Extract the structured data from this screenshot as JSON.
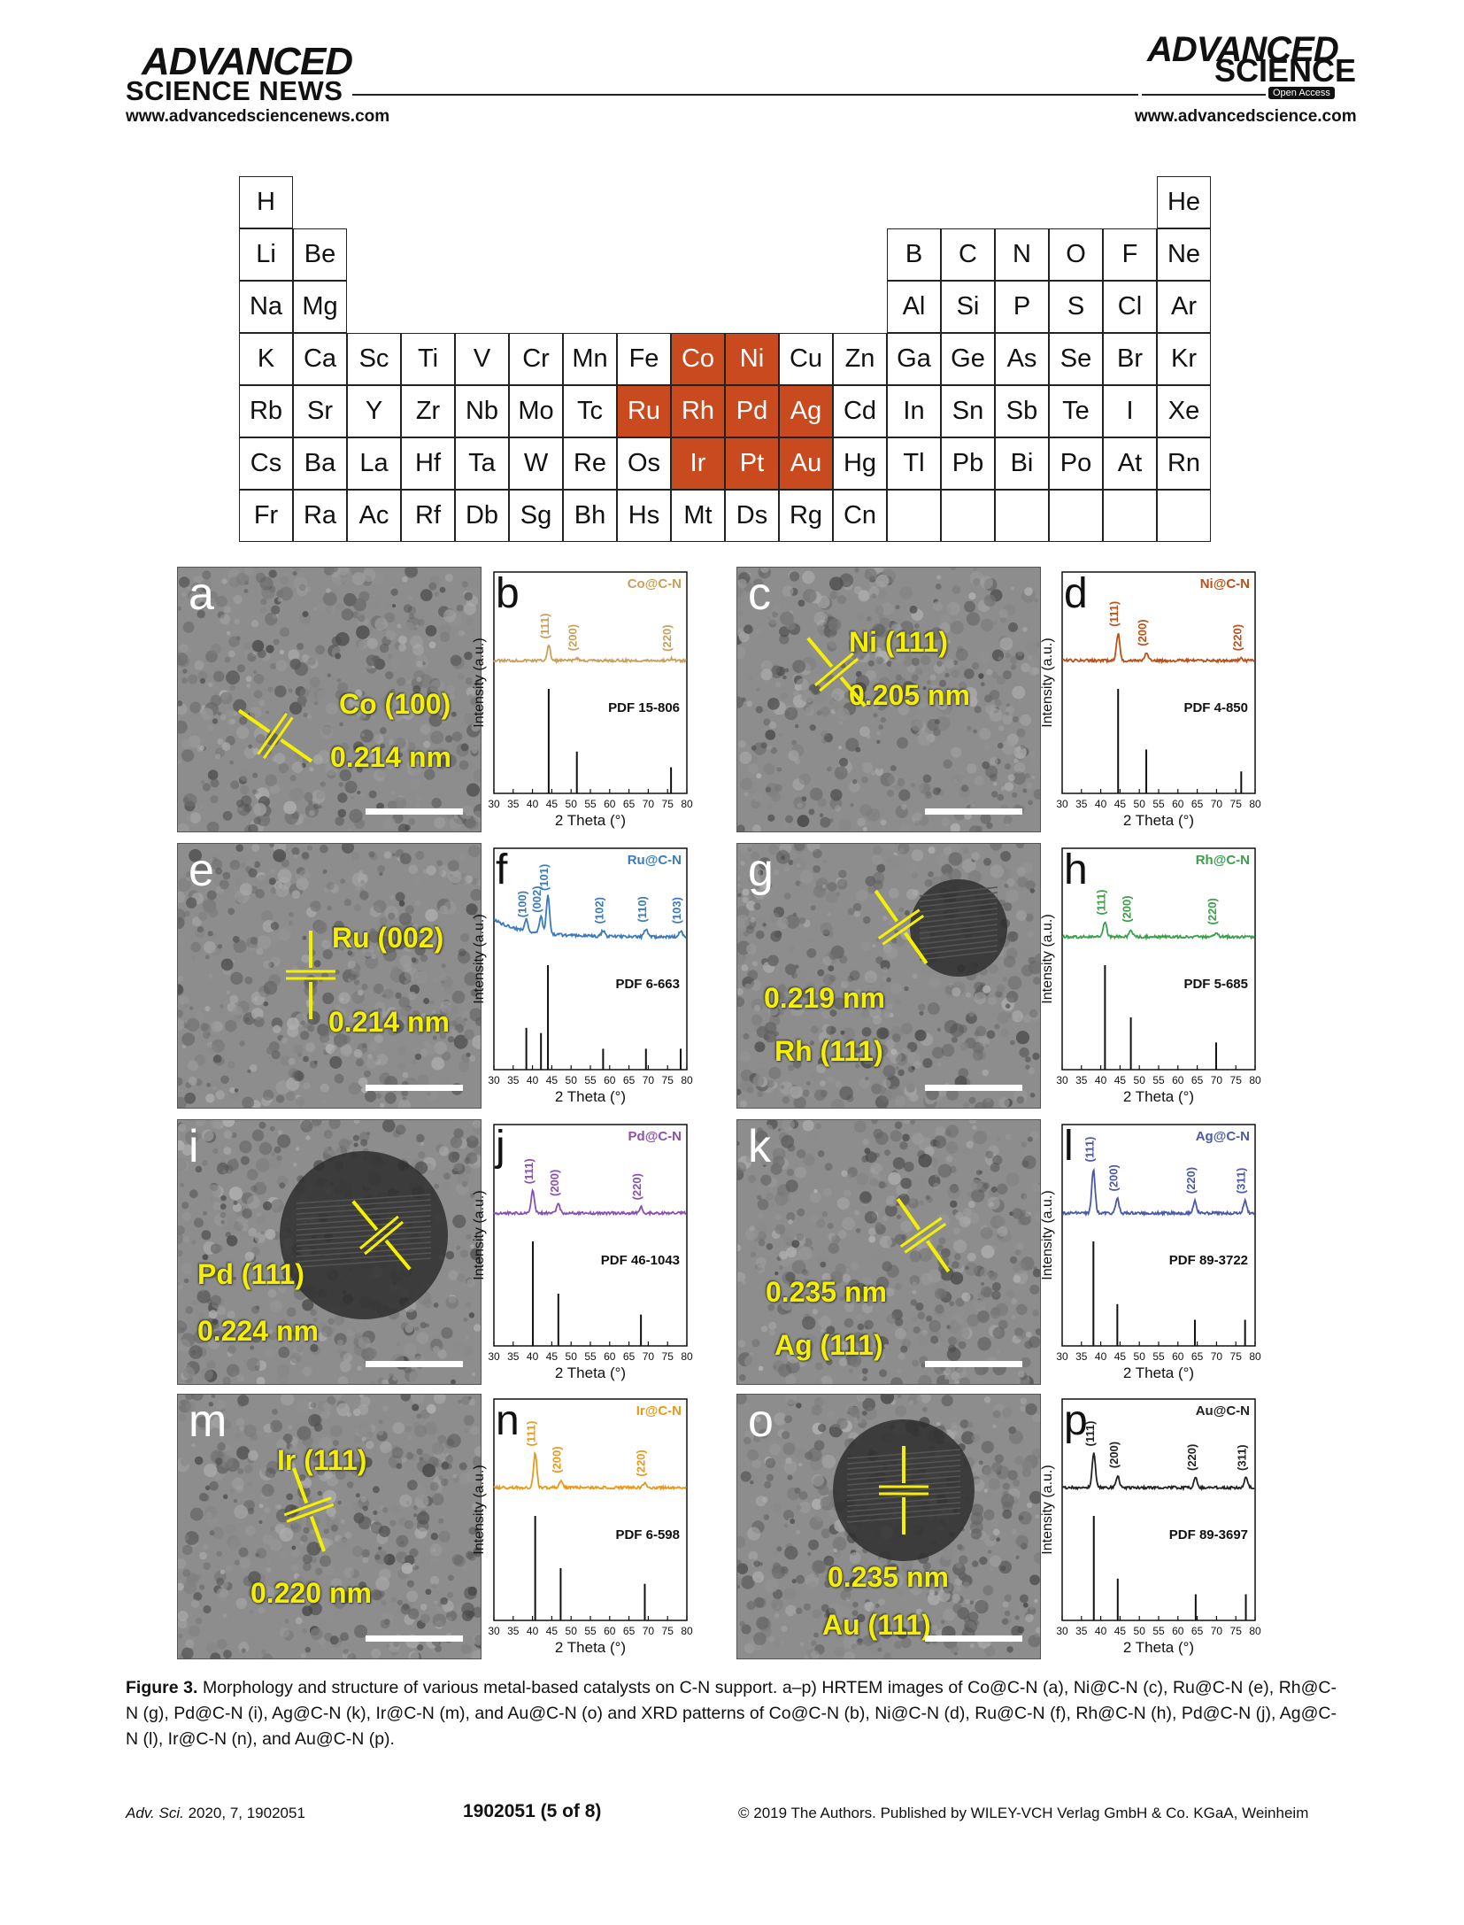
{
  "header": {
    "left_logo_line1": "ADVANCED",
    "left_logo_line2": "SCIENCE NEWS",
    "left_url": "www.advancedsciencenews.com",
    "right_logo_line1": "ADVANCED",
    "right_logo_line2": "SCIENCE",
    "right_badge": "Open Access",
    "right_url": "www.advancedscience.com"
  },
  "periodic_table": {
    "highlight_color": "#c94a1f",
    "highlighted": [
      "Co",
      "Ni",
      "Ru",
      "Rh",
      "Pd",
      "Ag",
      "Ir",
      "Pt",
      "Au"
    ],
    "rows": [
      [
        "H",
        null,
        null,
        null,
        null,
        null,
        null,
        null,
        null,
        null,
        null,
        null,
        null,
        null,
        null,
        null,
        null,
        "He"
      ],
      [
        "Li",
        "Be",
        null,
        null,
        null,
        null,
        null,
        null,
        null,
        null,
        null,
        null,
        "B",
        "C",
        "N",
        "O",
        "F",
        "Ne"
      ],
      [
        "Na",
        "Mg",
        null,
        null,
        null,
        null,
        null,
        null,
        null,
        null,
        null,
        null,
        "Al",
        "Si",
        "P",
        "S",
        "Cl",
        "Ar"
      ],
      [
        "K",
        "Ca",
        "Sc",
        "Ti",
        "V",
        "Cr",
        "Mn",
        "Fe",
        "Co",
        "Ni",
        "Cu",
        "Zn",
        "Ga",
        "Ge",
        "As",
        "Se",
        "Br",
        "Kr"
      ],
      [
        "Rb",
        "Sr",
        "Y",
        "Zr",
        "Nb",
        "Mo",
        "Tc",
        "Ru",
        "Rh",
        "Pd",
        "Ag",
        "Cd",
        "In",
        "Sn",
        "Sb",
        "Te",
        "I",
        "Xe"
      ],
      [
        "Cs",
        "Ba",
        "La",
        "Hf",
        "Ta",
        "W",
        "Re",
        "Os",
        "Ir",
        "Pt",
        "Au",
        "Hg",
        "Tl",
        "Pb",
        "Bi",
        "Po",
        "At",
        "Rn"
      ],
      [
        "Fr",
        "Ra",
        "Ac",
        "Rf",
        "Db",
        "Sg",
        "Bh",
        "Hs",
        "Mt",
        "Ds",
        "Rg",
        "Cn",
        "",
        "",
        "",
        "",
        "",
        ""
      ]
    ]
  },
  "hrtem_panels": [
    {
      "letter": "a",
      "labels": [
        "Co (100)",
        "0.214 nm"
      ]
    },
    {
      "letter": "c",
      "labels": [
        "Ni (111)",
        "0.205 nm"
      ]
    },
    {
      "letter": "e",
      "labels": [
        "Ru (002)",
        "0.214 nm"
      ]
    },
    {
      "letter": "g",
      "labels": [
        "0.219 nm",
        "Rh (111)"
      ]
    },
    {
      "letter": "i",
      "labels": [
        "Pd (111)",
        "0.224 nm"
      ]
    },
    {
      "letter": "k",
      "labels": [
        "0.235 nm",
        "Ag (111)"
      ]
    },
    {
      "letter": "m",
      "labels": [
        "Ir (111)",
        "0.220 nm"
      ]
    },
    {
      "letter": "o",
      "labels": [
        "0.235 nm",
        "Au (111)"
      ]
    }
  ],
  "chart_data": [
    {
      "type": "line",
      "panel": "b",
      "sample": "Co@C-N",
      "color": "#c9a05a",
      "reference": "PDF 15-806",
      "xlabel": "2 Theta (°)",
      "ylabel": "Intensity (a.u.)",
      "xlim": [
        30,
        80
      ],
      "x_ticks": [
        30,
        35,
        40,
        45,
        50,
        55,
        60,
        65,
        70,
        75,
        80
      ],
      "peaks": [
        {
          "x": 44.2,
          "label": "(111)",
          "h": 0.3
        },
        {
          "x": 51.5,
          "label": "(200)",
          "h": 0.05
        },
        {
          "x": 75.9,
          "label": "(220)",
          "h": 0.04
        }
      ],
      "pdf_sticks": [
        {
          "x": 44.2,
          "h": 1.0
        },
        {
          "x": 51.5,
          "h": 0.4
        },
        {
          "x": 75.9,
          "h": 0.25
        }
      ]
    },
    {
      "type": "line",
      "panel": "d",
      "sample": "Ni@C-N",
      "color": "#b8511a",
      "reference": "PDF 4-850",
      "xlabel": "2 Theta (°)",
      "ylabel": "Intensity (a.u.)",
      "xlim": [
        30,
        80
      ],
      "x_ticks": [
        30,
        35,
        40,
        45,
        50,
        55,
        60,
        65,
        70,
        75,
        80
      ],
      "peaks": [
        {
          "x": 44.5,
          "label": "(111)",
          "h": 0.55
        },
        {
          "x": 51.8,
          "label": "(200)",
          "h": 0.15
        },
        {
          "x": 76.4,
          "label": "(220)",
          "h": 0.05
        }
      ],
      "pdf_sticks": [
        {
          "x": 44.5,
          "h": 1.0
        },
        {
          "x": 51.8,
          "h": 0.42
        },
        {
          "x": 76.4,
          "h": 0.21
        }
      ]
    },
    {
      "type": "line",
      "panel": "f",
      "sample": "Ru@C-N",
      "color": "#3a7abf",
      "reference": "PDF 6-663",
      "xlabel": "2 Theta (°)",
      "ylabel": "Intensity (a.u.)",
      "xlim": [
        30,
        80
      ],
      "x_ticks": [
        30,
        35,
        40,
        45,
        50,
        55,
        60,
        65,
        70,
        75,
        80
      ],
      "peaks": [
        {
          "x": 38.4,
          "label": "(100)",
          "h": 0.25
        },
        {
          "x": 42.2,
          "label": "(002)",
          "h": 0.35
        },
        {
          "x": 44.0,
          "label": "(101)",
          "h": 0.8
        },
        {
          "x": 58.3,
          "label": "(102)",
          "h": 0.12
        },
        {
          "x": 69.4,
          "label": "(110)",
          "h": 0.15
        },
        {
          "x": 78.4,
          "label": "(103)",
          "h": 0.12
        }
      ],
      "pdf_sticks": [
        {
          "x": 38.4,
          "h": 0.4
        },
        {
          "x": 42.2,
          "h": 0.35
        },
        {
          "x": 44.0,
          "h": 1.0
        },
        {
          "x": 58.3,
          "h": 0.2
        },
        {
          "x": 69.4,
          "h": 0.2
        },
        {
          "x": 78.4,
          "h": 0.2
        }
      ]
    },
    {
      "type": "line",
      "panel": "h",
      "sample": "Rh@C-N",
      "color": "#3aa04a",
      "reference": "PDF 5-685",
      "xlabel": "2 Theta (°)",
      "ylabel": "Intensity (a.u.)",
      "xlim": [
        30,
        80
      ],
      "x_ticks": [
        30,
        35,
        40,
        45,
        50,
        55,
        60,
        65,
        70,
        75,
        80
      ],
      "peaks": [
        {
          "x": 41.1,
          "label": "(111)",
          "h": 0.3
        },
        {
          "x": 47.8,
          "label": "(200)",
          "h": 0.15
        },
        {
          "x": 69.9,
          "label": "(220)",
          "h": 0.1
        }
      ],
      "pdf_sticks": [
        {
          "x": 41.1,
          "h": 1.0
        },
        {
          "x": 47.8,
          "h": 0.5
        },
        {
          "x": 69.9,
          "h": 0.26
        }
      ]
    },
    {
      "type": "line",
      "panel": "j",
      "sample": "Pd@C-N",
      "color": "#8a4fb0",
      "reference": "PDF 46-1043",
      "xlabel": "2 Theta (°)",
      "ylabel": "Intensity (a.u.)",
      "xlim": [
        30,
        80
      ],
      "x_ticks": [
        30,
        35,
        40,
        45,
        50,
        55,
        60,
        65,
        70,
        75,
        80
      ],
      "peaks": [
        {
          "x": 40.1,
          "label": "(111)",
          "h": 0.45
        },
        {
          "x": 46.7,
          "label": "(200)",
          "h": 0.2
        },
        {
          "x": 68.1,
          "label": "(220)",
          "h": 0.12
        }
      ],
      "pdf_sticks": [
        {
          "x": 40.1,
          "h": 1.0
        },
        {
          "x": 46.7,
          "h": 0.5
        },
        {
          "x": 68.1,
          "h": 0.3
        }
      ]
    },
    {
      "type": "line",
      "panel": "l",
      "sample": "Ag@C-N",
      "color": "#4a5aa8",
      "reference": "PDF 89-3722",
      "xlabel": "2 Theta (°)",
      "ylabel": "Intensity (a.u.)",
      "xlim": [
        30,
        80
      ],
      "x_ticks": [
        30,
        35,
        40,
        45,
        50,
        55,
        60,
        65,
        70,
        75,
        80
      ],
      "peaks": [
        {
          "x": 38.1,
          "label": "(111)",
          "h": 0.9
        },
        {
          "x": 44.3,
          "label": "(200)",
          "h": 0.3
        },
        {
          "x": 64.4,
          "label": "(220)",
          "h": 0.25
        },
        {
          "x": 77.4,
          "label": "(311)",
          "h": 0.25
        }
      ],
      "pdf_sticks": [
        {
          "x": 38.1,
          "h": 1.0
        },
        {
          "x": 44.3,
          "h": 0.4
        },
        {
          "x": 64.4,
          "h": 0.25
        },
        {
          "x": 77.4,
          "h": 0.25
        }
      ]
    },
    {
      "type": "line",
      "panel": "n",
      "sample": "Ir@C-N",
      "color": "#e89a1a",
      "reference": "PDF 6-598",
      "xlabel": "2 Theta (°)",
      "ylabel": "Intensity (a.u.)",
      "xlim": [
        30,
        80
      ],
      "x_ticks": [
        30,
        35,
        40,
        45,
        50,
        55,
        60,
        65,
        70,
        75,
        80
      ],
      "peaks": [
        {
          "x": 40.7,
          "label": "(111)",
          "h": 0.7
        },
        {
          "x": 47.3,
          "label": "(200)",
          "h": 0.15
        },
        {
          "x": 69.1,
          "label": "(220)",
          "h": 0.08
        }
      ],
      "pdf_sticks": [
        {
          "x": 40.7,
          "h": 1.0
        },
        {
          "x": 47.3,
          "h": 0.5
        },
        {
          "x": 69.1,
          "h": 0.35
        }
      ]
    },
    {
      "type": "line",
      "panel": "p",
      "sample": "Au@C-N",
      "color": "#222222",
      "reference": "PDF 89-3697",
      "xlabel": "2 Theta (°)",
      "ylabel": "Intensity (a.u.)",
      "xlim": [
        30,
        80
      ],
      "x_ticks": [
        30,
        35,
        40,
        45,
        50,
        55,
        60,
        65,
        70,
        75,
        80
      ],
      "peaks": [
        {
          "x": 38.2,
          "label": "(111)",
          "h": 0.7
        },
        {
          "x": 44.4,
          "label": "(200)",
          "h": 0.25
        },
        {
          "x": 64.6,
          "label": "(220)",
          "h": 0.2
        },
        {
          "x": 77.6,
          "label": "(311)",
          "h": 0.2
        }
      ],
      "pdf_sticks": [
        {
          "x": 38.2,
          "h": 1.0
        },
        {
          "x": 44.4,
          "h": 0.4
        },
        {
          "x": 64.6,
          "h": 0.25
        },
        {
          "x": 77.6,
          "h": 0.25
        }
      ]
    }
  ],
  "caption": {
    "label": "Figure 3.",
    "text": "Morphology and structure of various metal-based catalysts on C-N support. a–p) HRTEM images of Co@C-N (a), Ni@C-N (c), Ru@C-N (e), Rh@C-N (g), Pd@C-N (i), Ag@C-N (k), Ir@C-N (m), and Au@C-N (o) and XRD patterns of Co@C-N (b), Ni@C-N (d), Ru@C-N (f), Rh@C-N (h), Pd@C-N (j), Ag@C-N (l), Ir@C-N (n), and Au@C-N (p)."
  },
  "footer": {
    "journal": "Adv. Sci.",
    "year_vol": "2020, 7, 1902051",
    "page": "1902051  (5 of 8)",
    "copyright": "© 2019 The Authors. Published by WILEY-VCH Verlag GmbH & Co. KGaA, Weinheim"
  }
}
